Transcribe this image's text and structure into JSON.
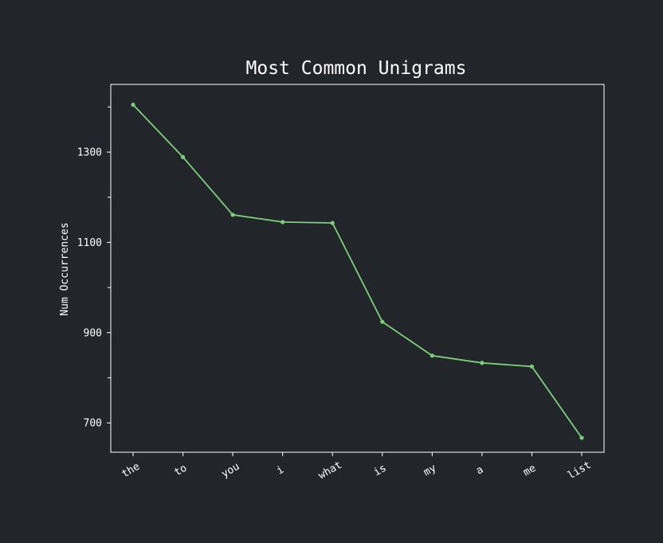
{
  "chart_data": {
    "type": "line",
    "title": "Most Common Unigrams",
    "xlabel": "",
    "ylabel": "Num Occurrences",
    "categories": [
      "the",
      "to",
      "you",
      "i",
      "what",
      "is",
      "my",
      "a",
      "me",
      "list"
    ],
    "series": [
      {
        "values": [
          1405,
          1289,
          1161,
          1145,
          1143,
          924,
          849,
          833,
          825,
          667
        ]
      }
    ],
    "ylim": [
      635,
      1450
    ],
    "yticks_labeled": [
      700,
      900,
      1100,
      1300
    ],
    "yticks_minor": [
      800,
      1000,
      1200,
      1400
    ],
    "grid": false,
    "legend": "none",
    "colors": {
      "background": "#22252a",
      "frame": "#ffffff",
      "line": "#7ccf7a",
      "text": "#ffffff"
    }
  }
}
